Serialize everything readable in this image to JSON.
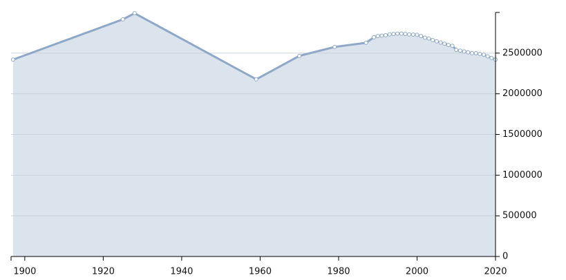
{
  "chart_data": {
    "type": "area",
    "x": [
      1897,
      1925,
      1928,
      1959,
      1970,
      1979,
      1987,
      1989,
      1990,
      1991,
      1992,
      1993,
      1994,
      1995,
      1996,
      1997,
      1998,
      1999,
      2000,
      2001,
      2002,
      2003,
      2004,
      2005,
      2006,
      2007,
      2008,
      2009,
      2010,
      2011,
      2012,
      2013,
      2014,
      2015,
      2016,
      2017,
      2018,
      2019,
      2020
    ],
    "series": [
      {
        "color": "#8fa8c8",
        "values": [
          2420000,
          2915000,
          2990000,
          2178000,
          2466000,
          2576000,
          2627000,
          2695000,
          2710000,
          2715000,
          2720000,
          2730000,
          2735000,
          2740000,
          2740000,
          2735000,
          2730000,
          2728000,
          2725000,
          2710000,
          2690000,
          2680000,
          2660000,
          2645000,
          2630000,
          2615000,
          2600000,
          2590000,
          2540000,
          2530000,
          2520000,
          2510000,
          2500000,
          2500000,
          2490000,
          2480000,
          2460000,
          2440000,
          2420000
        ]
      }
    ],
    "xlim": [
      1896.5,
      2020
    ],
    "xticks": [
      1900,
      1920,
      1940,
      1960,
      1980,
      2000,
      2020
    ],
    "ylim": [
      0,
      3000000
    ],
    "yticks": [
      0,
      500000,
      1000000,
      1500000,
      2000000,
      2500000
    ],
    "grid": true
  }
}
